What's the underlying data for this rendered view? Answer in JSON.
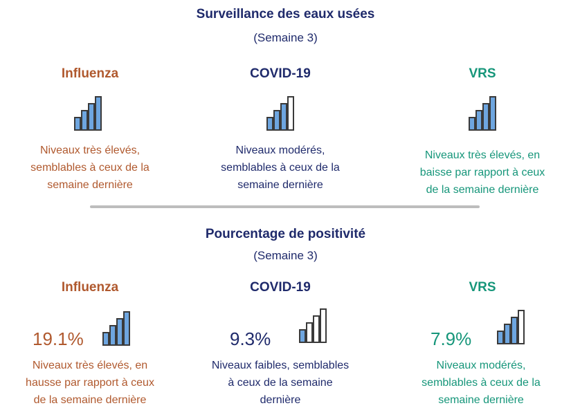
{
  "wastewater": {
    "title": "Surveillance des eaux usées",
    "week": "(Semaine 3)",
    "influenza": {
      "name": "Influenza",
      "level_bars": 4,
      "desc": [
        "Niveaux très élevés,",
        "semblables à ceux de la",
        "semaine dernière"
      ]
    },
    "covid": {
      "name": "COVID-19",
      "level_bars": 3,
      "desc": [
        "Niveaux modérés,",
        "semblables à ceux de la",
        "semaine dernière"
      ]
    },
    "rsv": {
      "name": "VRS",
      "level_bars": 4,
      "desc": [
        "Niveaux très élevés, en",
        "baisse par rapport à ceux",
        "de la semaine dernière"
      ]
    }
  },
  "positivity": {
    "title": "Pourcentage de positivité",
    "week": "(Semaine 3)",
    "influenza": {
      "name": "Influenza",
      "value": "19.1%",
      "level_bars": 4,
      "desc": [
        "Niveaux très élevés, en",
        "hausse par rapport à ceux",
        "de la semaine dernière"
      ]
    },
    "covid": {
      "name": "COVID-19",
      "value": "9.3%",
      "level_bars": 1,
      "desc": [
        "Niveaux faibles, semblables",
        "à ceux de la semaine",
        "dernière"
      ]
    },
    "rsv": {
      "name": "VRS",
      "value": "7.9%",
      "level_bars": 3,
      "desc": [
        "Niveaux modérés,",
        "semblables à ceux de la",
        "semaine dernière"
      ]
    }
  },
  "colors": {
    "influenza": "#b0592e",
    "covid": "#1f2a6b",
    "rsv": "#16967a",
    "bar_fill": "#6ea6e0",
    "bar_stroke": "#3a3a3a"
  }
}
